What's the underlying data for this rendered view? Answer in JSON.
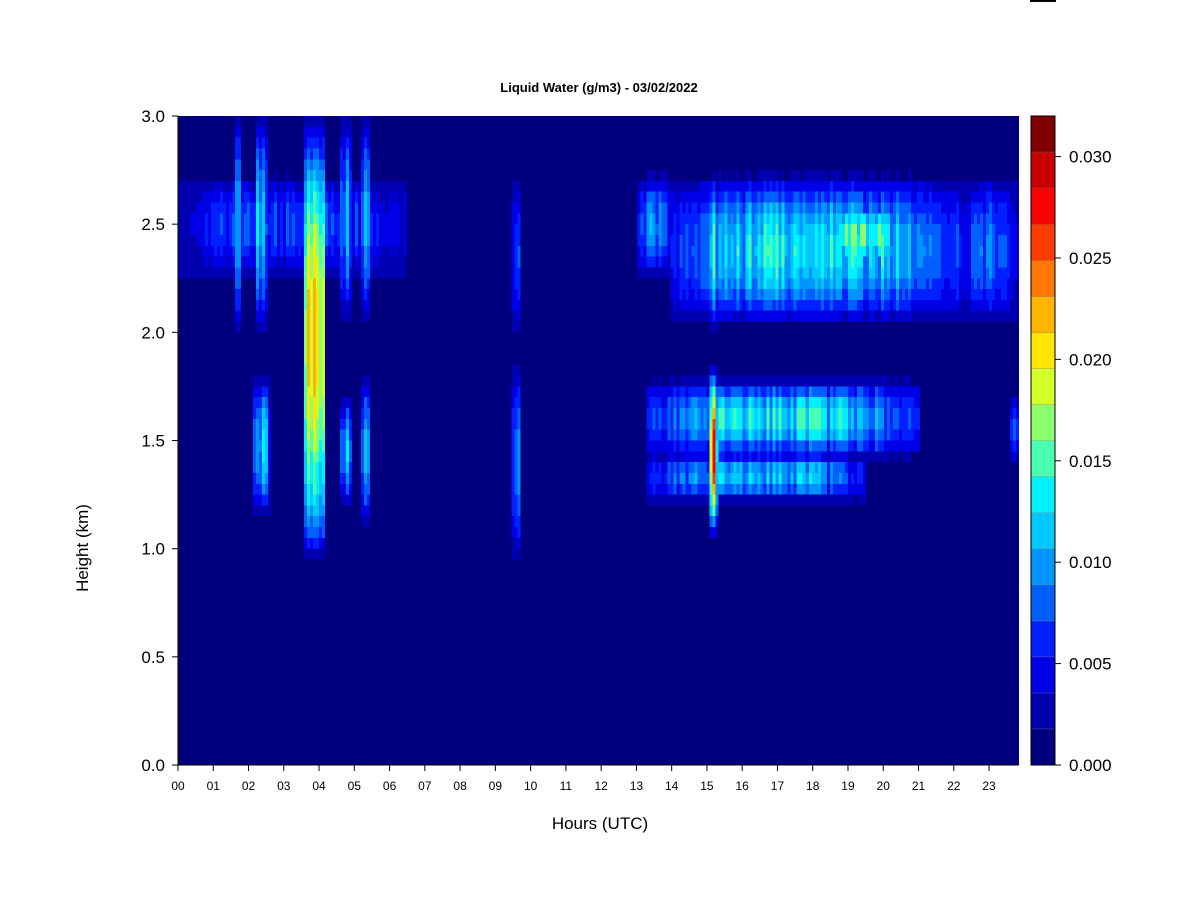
{
  "chart_data": {
    "type": "heatmap",
    "title": "Liquid Water (g/m3) - 03/02/2022",
    "xlabel": "Hours (UTC)",
    "ylabel": "Height (km)",
    "x_ticks": [
      "00",
      "01",
      "02",
      "03",
      "04",
      "05",
      "06",
      "07",
      "08",
      "09",
      "10",
      "11",
      "12",
      "13",
      "14",
      "15",
      "16",
      "17",
      "18",
      "19",
      "20",
      "21",
      "22",
      "23"
    ],
    "y_ticks": [
      "0.0",
      "0.5",
      "1.0",
      "1.5",
      "2.0",
      "2.5",
      "3.0"
    ],
    "xlim": [
      0,
      23.85
    ],
    "ylim": [
      0,
      3.0
    ],
    "colorbar": {
      "range": [
        0,
        0.032
      ],
      "ticks": [
        "0.000",
        "0.005",
        "0.010",
        "0.015",
        "0.020",
        "0.025",
        "0.030"
      ],
      "levels": [
        "#00007f",
        "#0000b0",
        "#0000e6",
        "#0020ff",
        "#0060ff",
        "#0094ff",
        "#00c8ff",
        "#00f2fa",
        "#4affb2",
        "#8cff6e",
        "#d2ff2a",
        "#ffe600",
        "#ffb400",
        "#ff7800",
        "#ff3c00",
        "#ff0000",
        "#c80000",
        "#800000"
      ]
    },
    "features": [
      {
        "t0": 0.0,
        "t1": 6.5,
        "h0": 2.25,
        "h1": 2.73,
        "peak": 0.006
      },
      {
        "t0": 1.6,
        "t1": 1.8,
        "h0": 2.0,
        "h1": 3.0,
        "peak": 0.01
      },
      {
        "t0": 2.2,
        "t1": 2.55,
        "h0": 2.0,
        "h1": 3.0,
        "peak": 0.012
      },
      {
        "t0": 3.55,
        "t1": 4.2,
        "h0": 0.95,
        "h1": 3.0,
        "peak": 0.025
      },
      {
        "t0": 4.6,
        "t1": 4.95,
        "h0": 2.05,
        "h1": 3.0,
        "peak": 0.01
      },
      {
        "t0": 5.2,
        "t1": 5.45,
        "h0": 2.05,
        "h1": 3.0,
        "peak": 0.012
      },
      {
        "t0": 2.1,
        "t1": 2.6,
        "h0": 1.15,
        "h1": 1.8,
        "peak": 0.011
      },
      {
        "t0": 3.55,
        "t1": 4.2,
        "h0": 0.95,
        "h1": 1.8,
        "peak": 0.016
      },
      {
        "t0": 4.6,
        "t1": 4.95,
        "h0": 1.2,
        "h1": 1.7,
        "peak": 0.011
      },
      {
        "t0": 5.2,
        "t1": 5.45,
        "h0": 1.1,
        "h1": 1.8,
        "peak": 0.012
      },
      {
        "t0": 9.45,
        "t1": 9.75,
        "h0": 0.95,
        "h1": 1.85,
        "peak": 0.01
      },
      {
        "t0": 9.45,
        "t1": 9.75,
        "h0": 2.0,
        "h1": 2.7,
        "peak": 0.007
      },
      {
        "t0": 13.0,
        "t1": 14.0,
        "h0": 2.25,
        "h1": 2.73,
        "peak": 0.008
      },
      {
        "t0": 14.0,
        "t1": 22.2,
        "h0": 2.03,
        "h1": 2.73,
        "peak": 0.012
      },
      {
        "t0": 18.5,
        "t1": 20.5,
        "h0": 2.3,
        "h1": 2.6,
        "peak": 0.015
      },
      {
        "t0": 22.2,
        "t1": 23.85,
        "h0": 2.03,
        "h1": 2.73,
        "peak": 0.007
      },
      {
        "t0": 13.3,
        "t1": 21.0,
        "h0": 1.42,
        "h1": 1.78,
        "peak": 0.012
      },
      {
        "t0": 13.3,
        "t1": 19.5,
        "h0": 1.22,
        "h1": 1.45,
        "peak": 0.01
      },
      {
        "t0": 15.05,
        "t1": 15.3,
        "h0": 1.05,
        "h1": 1.85,
        "peak": 0.022
      },
      {
        "t0": 15.05,
        "t1": 15.3,
        "h0": 2.0,
        "h1": 2.73,
        "peak": 0.012
      },
      {
        "t0": 23.6,
        "t1": 23.85,
        "h0": 1.4,
        "h1": 1.7,
        "peak": 0.007
      }
    ]
  }
}
